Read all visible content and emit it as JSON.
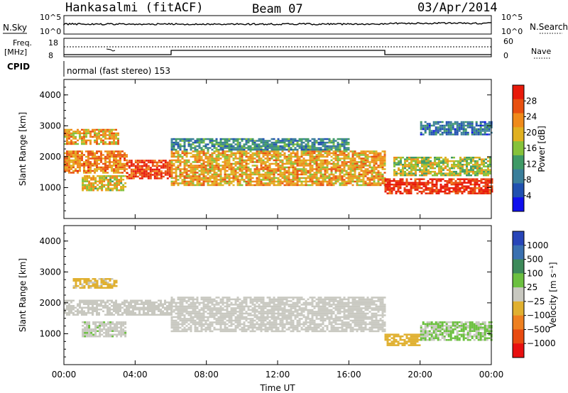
{
  "header": {
    "station": "Hankasalmi (fitACF)",
    "beam": "Beam 07",
    "date": "03/Apr/2014"
  },
  "status_panel": {
    "nsky_label": "N.Sky",
    "nsky_ticks": [
      "10^5",
      "10^0"
    ],
    "nsearch_label": "N.Search",
    "nsearch_ticks": [
      "10^5",
      "10^0"
    ],
    "freq_label_line1": "Freq.",
    "freq_label_line2": "[MHz]",
    "freq_ticks": [
      "18",
      "8"
    ],
    "nave_label": "Nave",
    "nave_ticks": [
      "60",
      "0"
    ],
    "cpid_label": "CPID",
    "cpid_text": "normal (fast stereo) 153"
  },
  "colors": {
    "power_scale": [
      "#1010ee",
      "#2050b0",
      "#3a7e9a",
      "#3f9a66",
      "#86c23a",
      "#e0b020",
      "#ef8a1a",
      "#e85010",
      "#e81a0a"
    ],
    "velocity_scale": [
      "#2845b8",
      "#3a70b0",
      "#3d8a5a",
      "#6cc040",
      "#c8c8c0",
      "#e0b030",
      "#ee8020",
      "#e84a10",
      "#e81010"
    ]
  },
  "chart_data": [
    {
      "type": "heatmap",
      "title": "",
      "parameter": "Power",
      "ylabel": "Slant Range [km]",
      "xlabel": "",
      "ylim": [
        0,
        4500
      ],
      "xlim": [
        "00:00",
        "24:00"
      ],
      "y_ticks": [
        1000,
        2000,
        3000,
        4000
      ],
      "colorbar": {
        "label": "Power [dB]",
        "tick_labels": [
          "4",
          "8",
          "12",
          "16",
          "20",
          "24",
          "28"
        ],
        "range": [
          0,
          30
        ]
      },
      "echo_regions": [
        {
          "t_start": 0.0,
          "t_end": 3.5,
          "r_low": 1500,
          "r_high": 2200,
          "value": 22
        },
        {
          "t_start": 0.0,
          "t_end": 3.0,
          "r_low": 2400,
          "r_high": 2900,
          "value": 20
        },
        {
          "t_start": 1.0,
          "t_end": 3.5,
          "r_low": 900,
          "r_high": 1400,
          "value": 18
        },
        {
          "t_start": 3.5,
          "t_end": 6.0,
          "r_low": 1300,
          "r_high": 1900,
          "value": 26
        },
        {
          "t_start": 6.0,
          "t_end": 18.0,
          "r_low": 1100,
          "r_high": 2200,
          "value": 20
        },
        {
          "t_start": 6.0,
          "t_end": 16.0,
          "r_low": 2200,
          "r_high": 2600,
          "value": 10
        },
        {
          "t_start": 18.0,
          "t_end": 24.0,
          "r_low": 800,
          "r_high": 1300,
          "value": 28
        },
        {
          "t_start": 18.5,
          "t_end": 24.0,
          "r_low": 1400,
          "r_high": 2000,
          "value": 16
        },
        {
          "t_start": 20.0,
          "t_end": 24.0,
          "r_low": 2700,
          "r_high": 3150,
          "value": 8
        }
      ]
    },
    {
      "type": "heatmap",
      "title": "",
      "parameter": "Velocity",
      "ylabel": "Slant Range [km]",
      "xlabel": "Time UT",
      "ylim": [
        0,
        4500
      ],
      "xlim": [
        "00:00",
        "24:00"
      ],
      "y_ticks": [
        1000,
        2000,
        3000,
        4000
      ],
      "x_tick_labels": [
        "00:00",
        "04:00",
        "08:00",
        "12:00",
        "16:00",
        "20:00",
        "00:00"
      ],
      "colorbar": {
        "label": "Velocity [m s⁻¹]",
        "tick_labels": [
          "1000",
          "500",
          "100",
          "25",
          "−25",
          "−100",
          "−500",
          "−1000"
        ],
        "range": [
          -1200,
          1200
        ]
      },
      "echo_regions": [
        {
          "t_start": 0.0,
          "t_end": 6.0,
          "r_low": 1600,
          "r_high": 2100,
          "value": 0
        },
        {
          "t_start": 0.5,
          "t_end": 3.0,
          "r_low": 2500,
          "r_high": 2800,
          "value": -200
        },
        {
          "t_start": 1.0,
          "t_end": 3.5,
          "r_low": 900,
          "r_high": 1400,
          "value": 50
        },
        {
          "t_start": 6.0,
          "t_end": 18.0,
          "r_low": 1100,
          "r_high": 2200,
          "value": 0
        },
        {
          "t_start": 18.0,
          "t_end": 20.0,
          "r_low": 600,
          "r_high": 1000,
          "value": -300
        },
        {
          "t_start": 20.0,
          "t_end": 24.0,
          "r_low": 800,
          "r_high": 1400,
          "value": 150
        }
      ]
    }
  ]
}
